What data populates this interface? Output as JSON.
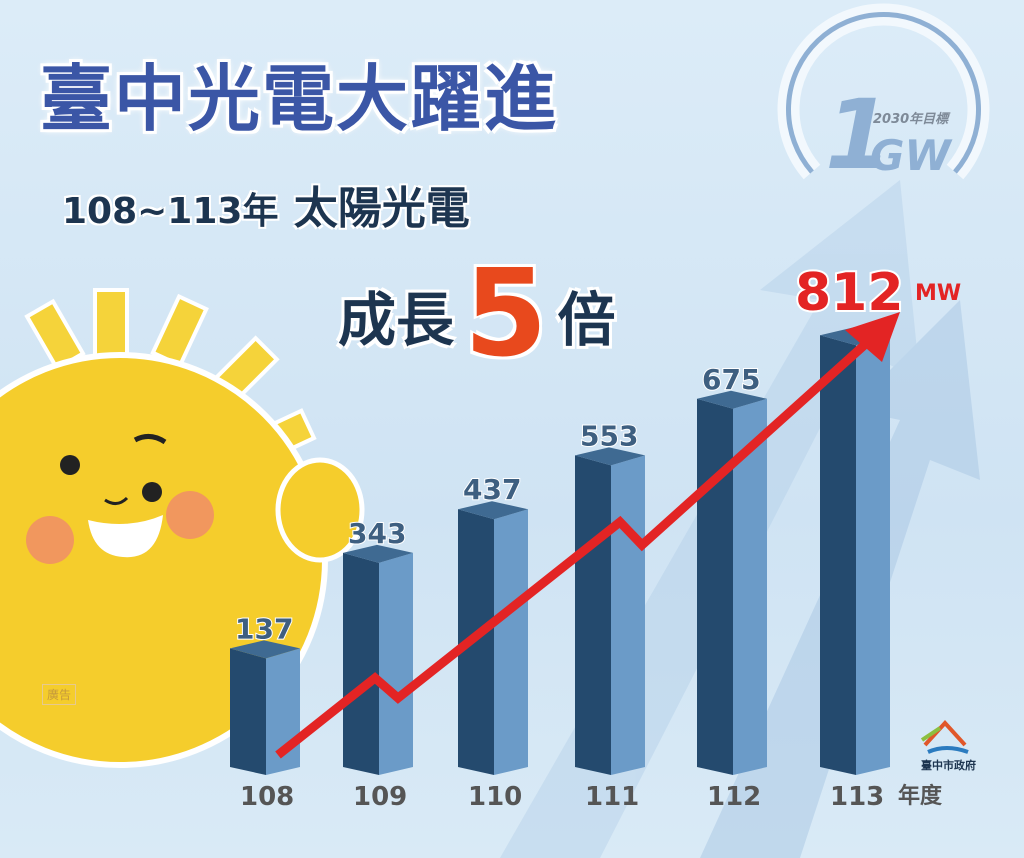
{
  "title": "臺中光電大躍進",
  "subtitle_years": "108~113年",
  "subtitle_text": "太陽光電",
  "growth": {
    "prefix": "成長",
    "number": "5",
    "suffix": "倍"
  },
  "target_badge": {
    "number": "1",
    "unit": "GW",
    "label": "2030年目標"
  },
  "ad_label": "廣告",
  "logo_text": "臺中市政府",
  "colors": {
    "bar_dark": "#244a6e",
    "bar_light": "#6b9bc8",
    "arrow": "#e32424",
    "title": "#3b56a6",
    "highlight": "#e8491d"
  },
  "chart_data": {
    "type": "bar",
    "categories": [
      "108",
      "109",
      "110",
      "111",
      "112",
      "113"
    ],
    "values": [
      137,
      343,
      437,
      553,
      675,
      812
    ],
    "value_labels": [
      "137",
      "343",
      "437",
      "553",
      "675",
      "812"
    ],
    "unit": "MW",
    "xlabel": "年度",
    "trend_arrow": true
  }
}
